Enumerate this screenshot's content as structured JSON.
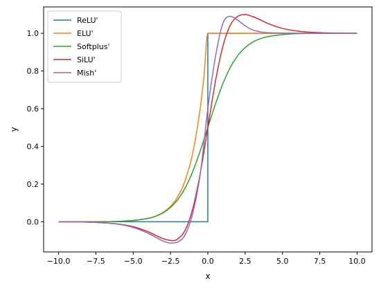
{
  "chart_data": {
    "type": "line",
    "title": "",
    "xlabel": "x",
    "ylabel": "y",
    "xlim": [
      -11,
      11
    ],
    "ylim": [
      -0.16,
      1.14
    ],
    "grid": false,
    "legend_placement": "top-left",
    "x_ticks": [
      {
        "value": -10,
        "label": "−10.0"
      },
      {
        "value": -7.5,
        "label": "−7.5"
      },
      {
        "value": -5,
        "label": "−5.0"
      },
      {
        "value": -2.5,
        "label": "−2.5"
      },
      {
        "value": 0,
        "label": "0.0"
      },
      {
        "value": 2.5,
        "label": "2.5"
      },
      {
        "value": 5,
        "label": "5.0"
      },
      {
        "value": 7.5,
        "label": "7.5"
      },
      {
        "value": 10,
        "label": "10.0"
      }
    ],
    "y_ticks": [
      {
        "value": 0,
        "label": "0.0"
      },
      {
        "value": 0.2,
        "label": "0.2"
      },
      {
        "value": 0.4,
        "label": "0.4"
      },
      {
        "value": 0.6,
        "label": "0.6"
      },
      {
        "value": 0.8,
        "label": "0.8"
      },
      {
        "value": 1.0,
        "label": "1.0"
      }
    ],
    "series": [
      {
        "name": "ReLU'",
        "color": "#1f77b4",
        "points": [
          [
            -10,
            0
          ],
          [
            0,
            0
          ],
          [
            0,
            1
          ],
          [
            10,
            1
          ]
        ]
      },
      {
        "name": "ELU'",
        "color": "#ff7f0e",
        "points": [
          [
            -10,
            0
          ],
          [
            -8,
            0
          ],
          [
            -6,
            0.002
          ],
          [
            -5,
            0.007
          ],
          [
            -4,
            0.018
          ],
          [
            -3.5,
            0.03
          ],
          [
            -3,
            0.05
          ],
          [
            -2.5,
            0.082
          ],
          [
            -2,
            0.135
          ],
          [
            -1.5,
            0.223
          ],
          [
            -1,
            0.368
          ],
          [
            -0.5,
            0.607
          ],
          [
            -0.25,
            0.779
          ],
          [
            0,
            1
          ],
          [
            10,
            1
          ]
        ]
      },
      {
        "name": "Softplus'",
        "color": "#2ca02c",
        "points": [
          [
            -10,
            0
          ],
          [
            -8,
            0
          ],
          [
            -6,
            0.002
          ],
          [
            -5,
            0.007
          ],
          [
            -4,
            0.018
          ],
          [
            -3.5,
            0.029
          ],
          [
            -3,
            0.047
          ],
          [
            -2.5,
            0.076
          ],
          [
            -2,
            0.119
          ],
          [
            -1.5,
            0.182
          ],
          [
            -1,
            0.269
          ],
          [
            -0.5,
            0.378
          ],
          [
            0,
            0.5
          ],
          [
            0.5,
            0.622
          ],
          [
            1,
            0.731
          ],
          [
            1.5,
            0.818
          ],
          [
            2,
            0.881
          ],
          [
            2.5,
            0.924
          ],
          [
            3,
            0.953
          ],
          [
            3.5,
            0.971
          ],
          [
            4,
            0.982
          ],
          [
            5,
            0.993
          ],
          [
            6,
            0.998
          ],
          [
            8,
            1
          ],
          [
            10,
            1
          ]
        ]
      },
      {
        "name": "SiLU'",
        "color": "#d62728",
        "points": [
          [
            -10,
            0
          ],
          [
            -8,
            -0.002
          ],
          [
            -6,
            -0.012
          ],
          [
            -5,
            -0.026
          ],
          [
            -4,
            -0.053
          ],
          [
            -3.5,
            -0.072
          ],
          [
            -3,
            -0.089
          ],
          [
            -2.5,
            -0.099
          ],
          [
            -2.25,
            -0.1
          ],
          [
            -2,
            -0.09
          ],
          [
            -1.5,
            -0.042
          ],
          [
            -1,
            0.072
          ],
          [
            -0.5,
            0.26
          ],
          [
            0,
            0.5
          ],
          [
            0.5,
            0.74
          ],
          [
            1,
            0.928
          ],
          [
            1.5,
            1.042
          ],
          [
            2,
            1.09
          ],
          [
            2.5,
            1.099
          ],
          [
            3,
            1.089
          ],
          [
            3.5,
            1.072
          ],
          [
            4,
            1.053
          ],
          [
            5,
            1.026
          ],
          [
            6,
            1.012
          ],
          [
            7,
            1.005
          ],
          [
            8,
            1.002
          ],
          [
            10,
            1
          ]
        ]
      },
      {
        "name": "Mish'",
        "color": "#9467bd",
        "points": [
          [
            -10,
            0
          ],
          [
            -8,
            -0.002
          ],
          [
            -6,
            -0.013
          ],
          [
            -5,
            -0.03
          ],
          [
            -4,
            -0.061
          ],
          [
            -3.5,
            -0.082
          ],
          [
            -3,
            -0.102
          ],
          [
            -2.5,
            -0.113
          ],
          [
            -2,
            -0.107
          ],
          [
            -1.5,
            -0.066
          ],
          [
            -1,
            0.049
          ],
          [
            -0.5,
            0.257
          ],
          [
            0,
            0.6
          ],
          [
            0.5,
            0.87
          ],
          [
            1,
            1.05
          ],
          [
            1.5,
            1.09
          ],
          [
            2,
            1.07
          ],
          [
            2.5,
            1.04
          ],
          [
            3,
            1.018
          ],
          [
            3.5,
            1.008
          ],
          [
            4,
            1.003
          ],
          [
            5,
            1.001
          ],
          [
            6,
            1
          ],
          [
            10,
            1
          ]
        ]
      }
    ]
  }
}
